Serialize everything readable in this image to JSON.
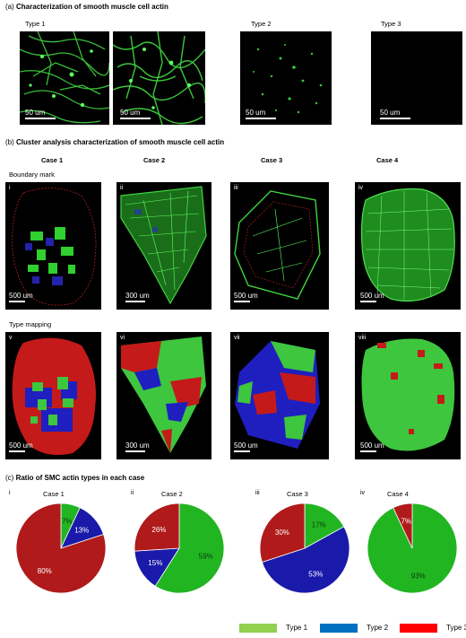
{
  "section_a": {
    "tag": "(a)",
    "title": "Characterization of smooth muscle cell actin",
    "types": [
      "Type 1",
      "Type 2",
      "Type 3"
    ],
    "scale": "50 um"
  },
  "section_b": {
    "tag": "(b)",
    "title": "Cluster analysis characterization of smooth muscle cell actin",
    "cases": [
      "Case 1",
      "Case 2",
      "Case 3",
      "Case 4"
    ],
    "row1_label": "Boundary mark",
    "row2_label": "Type mapping",
    "row1_numerals": [
      "i",
      "ii",
      "iii",
      "iv"
    ],
    "row2_numerals": [
      "v",
      "vi",
      "vii",
      "viii"
    ],
    "row1_scales": [
      "500 um",
      "300 um",
      "500 um",
      "500 um"
    ],
    "row2_scales": [
      "500 um",
      "300 um",
      "500 um",
      "500 um"
    ]
  },
  "section_c": {
    "tag": "(c)",
    "title": "Ratio of SMC actin types in each case",
    "numerals": [
      "i",
      "ii",
      "iii",
      "iv"
    ]
  },
  "colors": {
    "type1": "#92d050",
    "type2": "#0070c0",
    "type3": "#ff0000",
    "pie_type1": "#22b522",
    "pie_type2": "#1a1aaa",
    "pie_type3": "#b01a1a",
    "map_type1": "#3ec63e",
    "map_type2": "#1f1fbf",
    "map_type3": "#c41a1a"
  },
  "legend": [
    "Type 1",
    "Type 2",
    "Type 3"
  ],
  "chart_data": [
    {
      "type": "pie",
      "title": "Case 1",
      "categories": [
        "Type 1",
        "Type 2",
        "Type 3"
      ],
      "values": [
        7,
        13,
        80
      ],
      "labels": [
        "7%",
        "13%",
        "80%"
      ]
    },
    {
      "type": "pie",
      "title": "Case 2",
      "categories": [
        "Type 1",
        "Type 2",
        "Type 3"
      ],
      "values": [
        59,
        15,
        26
      ],
      "labels": [
        "59%",
        "15%",
        "26%"
      ]
    },
    {
      "type": "pie",
      "title": "Case 3",
      "categories": [
        "Type 1",
        "Type 2",
        "Type 3"
      ],
      "values": [
        17,
        53,
        30
      ],
      "labels": [
        "17%",
        "53%",
        "30%"
      ]
    },
    {
      "type": "pie",
      "title": "Case 4",
      "categories": [
        "Type 1",
        "Type 2",
        "Type 3"
      ],
      "values": [
        93,
        0,
        7
      ],
      "labels": [
        "93%",
        "",
        "7%"
      ]
    }
  ]
}
